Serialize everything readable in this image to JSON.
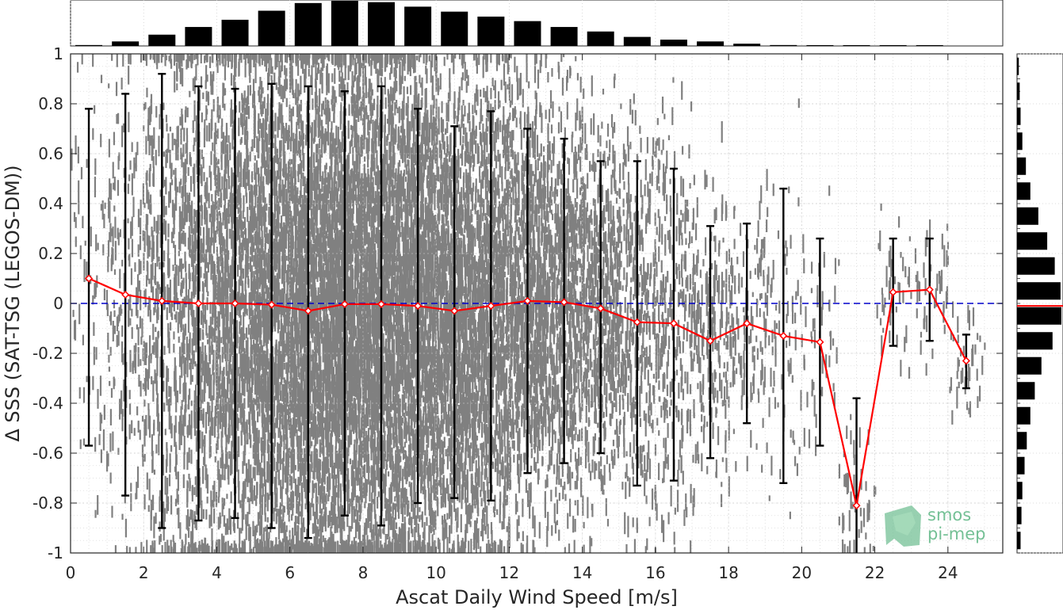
{
  "chart_data": {
    "type": "scatter",
    "xlabel": "Ascat Daily Wind Speed [m/s]",
    "ylabel": "Δ SSS (SAT-TSG (LEGOS-DM))",
    "xlim": [
      0,
      25.5
    ],
    "ylim": [
      -1,
      1
    ],
    "x_ticks": [
      0,
      2,
      4,
      6,
      8,
      10,
      12,
      14,
      16,
      18,
      20,
      22,
      24
    ],
    "y_ticks": [
      -1,
      -0.8,
      -0.6,
      -0.4,
      -0.2,
      0,
      0.2,
      0.4,
      0.6,
      0.8,
      1
    ],
    "x_tick_labels": [
      "0",
      "2",
      "4",
      "6",
      "8",
      "10",
      "12",
      "14",
      "16",
      "18",
      "20",
      "22",
      "24"
    ],
    "y_tick_labels": [
      "-1",
      "-0.8",
      "-0.6",
      "-0.4",
      "-0.2",
      "0",
      "0.2",
      "0.4",
      "0.6",
      "0.8",
      "1"
    ],
    "grid": true,
    "scatter_color": "#808080",
    "reference_line": {
      "y": 0,
      "color": "#0000cc",
      "style": "dashed"
    },
    "series": [
      {
        "color": "#ff0000",
        "marker": "diamond",
        "x": [
          0.5,
          1.5,
          2.5,
          3.5,
          4.5,
          5.5,
          6.5,
          7.5,
          8.5,
          9.5,
          10.5,
          11.5,
          12.5,
          13.5,
          14.5,
          15.5,
          16.5,
          17.5,
          18.5,
          19.5,
          20.5,
          21.5,
          22.5,
          23.5,
          24.5
        ],
        "y": [
          0.1,
          0.035,
          0.01,
          0.0,
          0.0,
          -0.005,
          -0.03,
          -0.003,
          -0.003,
          -0.01,
          -0.03,
          -0.01,
          0.01,
          0.005,
          -0.02,
          -0.075,
          -0.08,
          -0.15,
          -0.08,
          -0.13,
          -0.155,
          -0.81,
          0.045,
          0.055,
          -0.23
        ],
        "err_low": [
          -0.57,
          -0.77,
          -0.9,
          -0.87,
          -0.86,
          -0.9,
          -0.94,
          -0.85,
          -0.89,
          -0.8,
          -0.78,
          -0.79,
          -0.68,
          -0.64,
          -0.6,
          -0.73,
          -0.71,
          -0.62,
          -0.48,
          -0.72,
          -0.57,
          -1.05,
          -0.17,
          -0.15,
          -0.34
        ],
        "err_high": [
          0.78,
          0.84,
          0.92,
          0.87,
          0.86,
          0.88,
          0.87,
          0.85,
          0.87,
          0.78,
          0.71,
          0.77,
          0.7,
          0.66,
          0.57,
          0.57,
          0.54,
          0.31,
          0.32,
          0.46,
          0.26,
          -0.38,
          0.26,
          0.26,
          -0.125
        ]
      }
    ],
    "x_histogram": {
      "bins": [
        0.5,
        1.5,
        2.5,
        3.5,
        4.5,
        5.5,
        6.5,
        7.5,
        8.5,
        9.5,
        10.5,
        11.5,
        12.5,
        13.5,
        14.5,
        15.5,
        16.5,
        17.5,
        18.5,
        19.5,
        20.5,
        21.5,
        22.5,
        23.5,
        24.5
      ],
      "values": [
        0.02,
        0.1,
        0.25,
        0.42,
        0.58,
        0.78,
        0.95,
        1.0,
        0.97,
        0.87,
        0.76,
        0.65,
        0.55,
        0.42,
        0.32,
        0.2,
        0.14,
        0.1,
        0.05,
        0.02,
        0.005,
        0.002,
        0.001,
        0.001,
        0.0
      ]
    },
    "y_histogram": {
      "bins": [
        -0.95,
        -0.85,
        -0.75,
        -0.65,
        -0.55,
        -0.45,
        -0.35,
        -0.25,
        -0.15,
        -0.05,
        0.05,
        0.15,
        0.25,
        0.35,
        0.45,
        0.55,
        0.65,
        0.75,
        0.85,
        0.95
      ],
      "values": [
        0.08,
        0.1,
        0.12,
        0.17,
        0.22,
        0.3,
        0.4,
        0.55,
        0.8,
        1.0,
        0.98,
        0.85,
        0.68,
        0.48,
        0.3,
        0.2,
        0.12,
        0.08,
        0.06,
        0.04
      ],
      "median_line_color": "#ff0000"
    }
  },
  "logo": {
    "line1": "smos",
    "line2": "pi-mep",
    "color": "#74c095"
  }
}
